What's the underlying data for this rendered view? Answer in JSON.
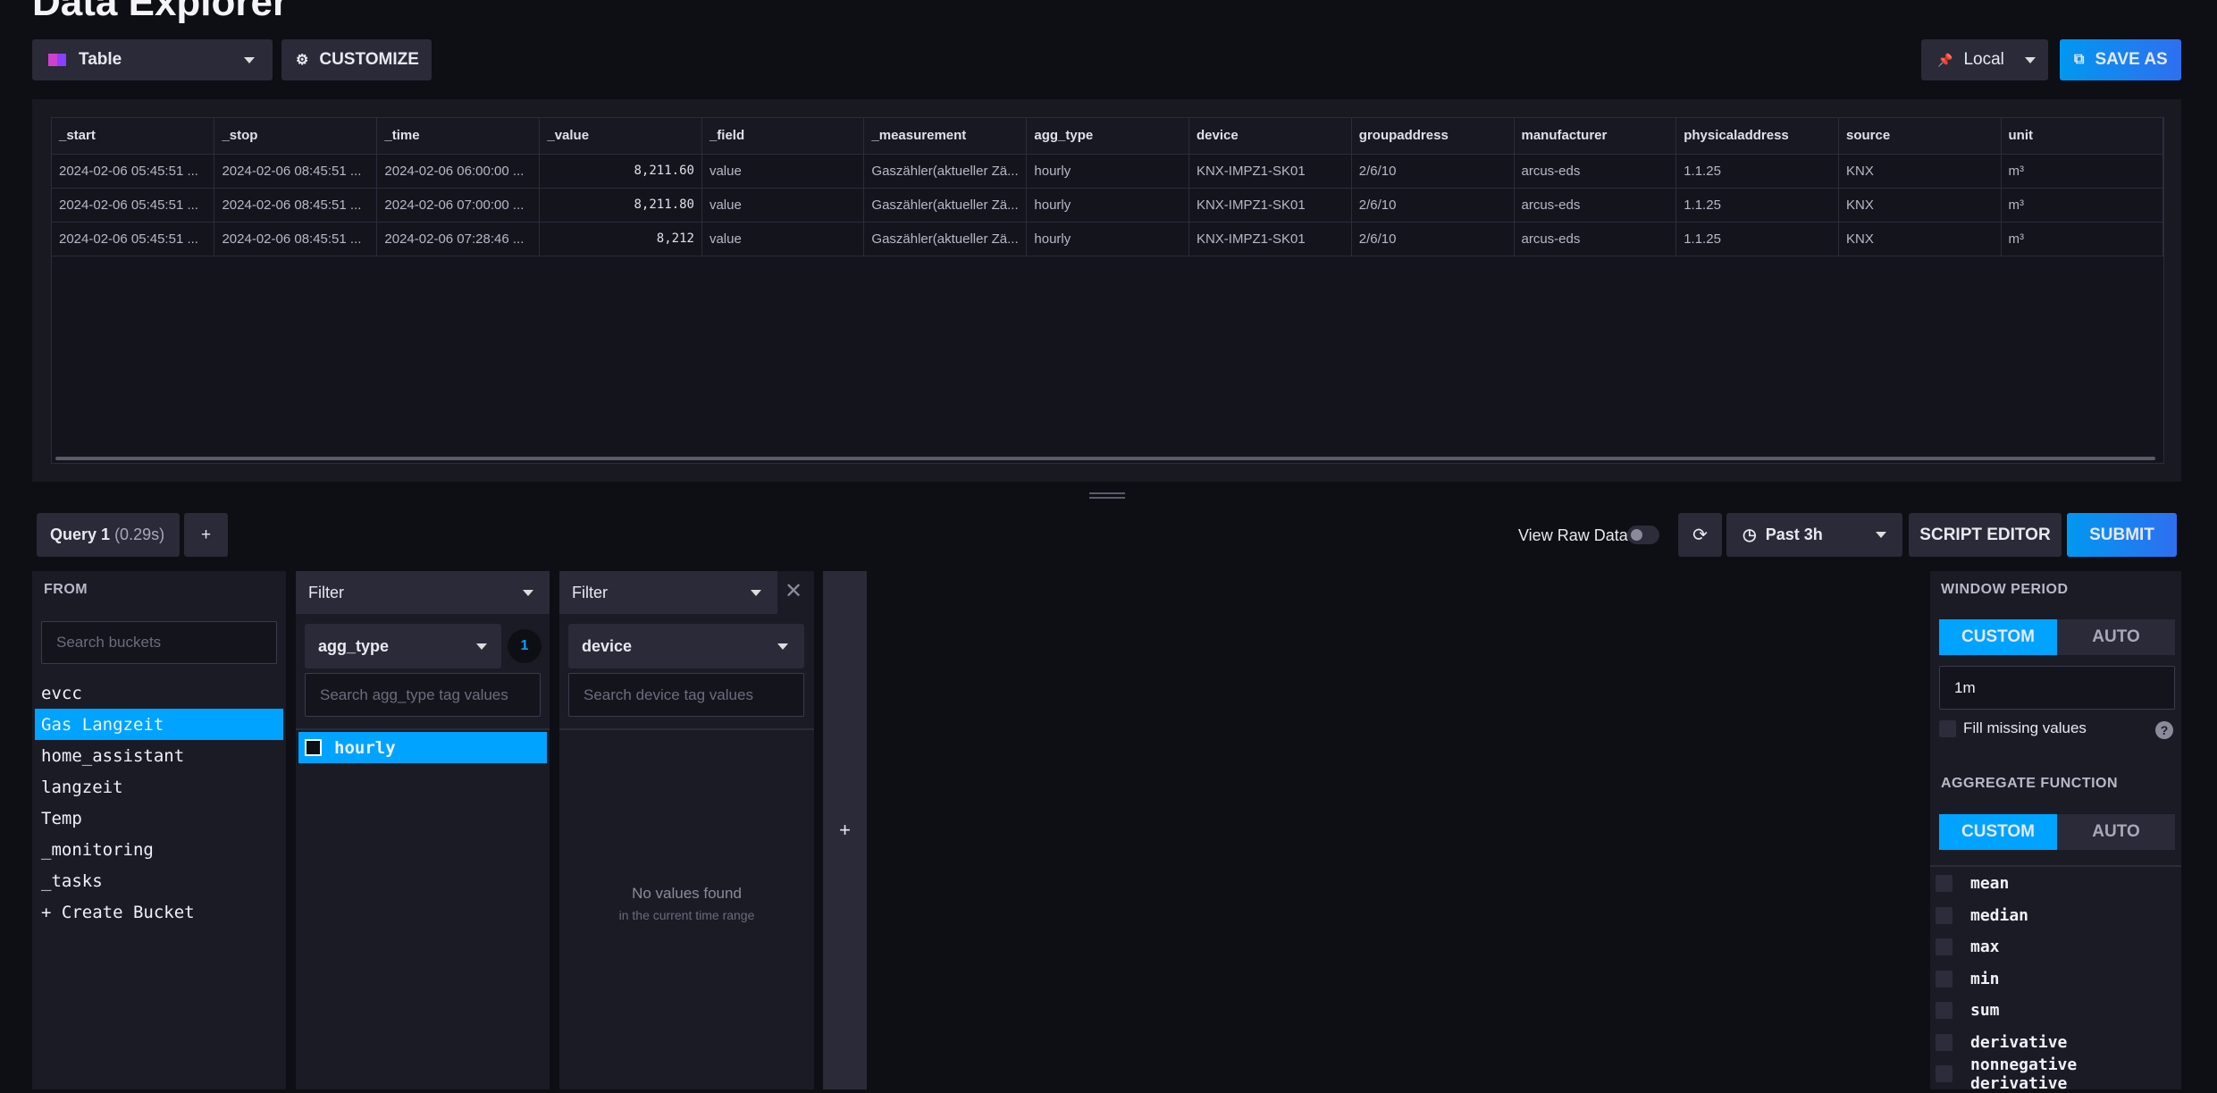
{
  "header": {
    "title": "Data Explorer",
    "view_type": "Table",
    "customize": "CUSTOMIZE",
    "timezone": "Local",
    "save_as": "SAVE AS"
  },
  "table": {
    "columns": [
      "_start",
      "_stop",
      "_time",
      "_value",
      "_field",
      "_measurement",
      "agg_type",
      "device",
      "groupaddress",
      "manufacturer",
      "physicaladdress",
      "source",
      "unit"
    ],
    "rows": [
      [
        "2024-02-06 05:45:51 ...",
        "2024-02-06 08:45:51 ...",
        "2024-02-06 06:00:00 ...",
        "8,211.60",
        "value",
        "Gaszähler(aktueller Zä...",
        "hourly",
        "KNX-IMPZ1-SK01",
        "2/6/10",
        "arcus-eds",
        "1.1.25",
        "KNX",
        "m³"
      ],
      [
        "2024-02-06 05:45:51 ...",
        "2024-02-06 08:45:51 ...",
        "2024-02-06 07:00:00 ...",
        "8,211.80",
        "value",
        "Gaszähler(aktueller Zä...",
        "hourly",
        "KNX-IMPZ1-SK01",
        "2/6/10",
        "arcus-eds",
        "1.1.25",
        "KNX",
        "m³"
      ],
      [
        "2024-02-06 05:45:51 ...",
        "2024-02-06 08:45:51 ...",
        "2024-02-06 07:28:46 ...",
        "8,212",
        "value",
        "Gaszähler(aktueller Zä...",
        "hourly",
        "KNX-IMPZ1-SK01",
        "2/6/10",
        "arcus-eds",
        "1.1.25",
        "KNX",
        "m³"
      ]
    ]
  },
  "query": {
    "tab": "Query 1",
    "duration": "(0.29s)",
    "add": "+",
    "view_raw": "View Raw Data",
    "time_range": "Past 3h",
    "script_editor": "SCRIPT EDITOR",
    "submit": "SUBMIT"
  },
  "from": {
    "label": "FROM",
    "search_placeholder": "Search buckets",
    "buckets": [
      "evcc",
      "Gas Langzeit",
      "home_assistant",
      "langzeit",
      "Temp",
      "_monitoring",
      "_tasks",
      "+ Create Bucket"
    ]
  },
  "filters": [
    {
      "label": "Filter",
      "key": "agg_type",
      "count": "1",
      "search_placeholder": "Search agg_type tag values",
      "values": [
        "hourly"
      ]
    },
    {
      "label": "Filter",
      "key": "device",
      "search_placeholder": "Search device tag values",
      "empty_title": "No values found",
      "empty_subtitle": "in the current time range"
    }
  ],
  "add_filter": "+",
  "window_period": {
    "label": "WINDOW PERIOD",
    "custom": "CUSTOM",
    "auto": "AUTO",
    "value": "1m",
    "fill_missing": "Fill missing values"
  },
  "aggregate": {
    "label": "AGGREGATE FUNCTION",
    "custom": "CUSTOM",
    "auto": "AUTO",
    "functions": [
      "mean",
      "median",
      "max",
      "min",
      "sum",
      "derivative",
      "nonnegative derivative"
    ]
  }
}
